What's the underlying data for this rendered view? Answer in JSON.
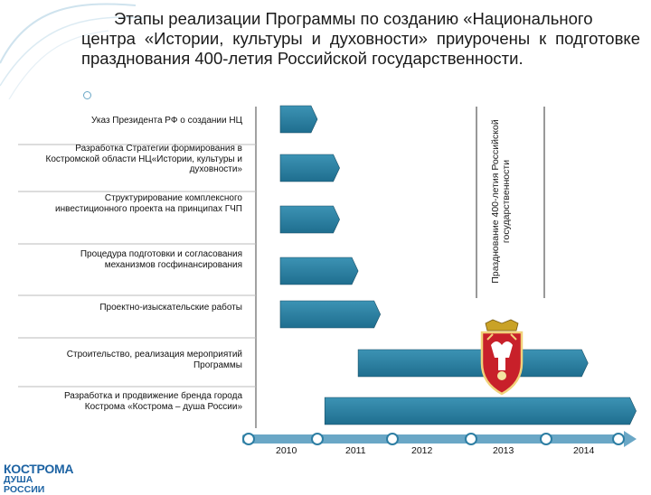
{
  "title": {
    "line1": "Этапы реализации Программы по созданию «Национального",
    "rest": "центра «Истории, культуры и духовности» приурочены к подготовке празднования 400-летия Российской государственности."
  },
  "vertical_note": "Празднование 400-летия Российской государственности",
  "logo": {
    "line1": "КОСТРОМА",
    "line2": "ДУША РОССИИ"
  },
  "colors": {
    "bar": "#1f6e8f",
    "bar_light": "#3c93b4",
    "axis": "#6aa7c6",
    "bracket": "#333333"
  },
  "chart_data": {
    "type": "gantt",
    "x_axis": {
      "ticks": [
        "2010",
        "2011",
        "2012",
        "2013",
        "2014"
      ]
    },
    "tasks": [
      {
        "label": "Указ Президента РФ о создании НЦ",
        "start": 2010.0,
        "end": 2010.5
      },
      {
        "label": "Разработка Стратегии формирования в Костромской области НЦ«Истории, культуры и духовности»",
        "start": 2010.0,
        "end": 2010.8
      },
      {
        "label": "Структурирование комплексного инвестиционного проекта на принципах ГЧП",
        "start": 2010.0,
        "end": 2010.8
      },
      {
        "label": "Процедура подготовки и согласования механизмов госфинансирования",
        "start": 2010.0,
        "end": 2011.05
      },
      {
        "label": "Проектно-изыскательские работы",
        "start": 2010.0,
        "end": 2011.35
      },
      {
        "label": "Строительство, реализация мероприятий Программы",
        "start": 2011.05,
        "end": 2014.15
      },
      {
        "label": "Разработка и продвижение бренда города Кострома «Кострома – душа России»",
        "start": 2010.6,
        "end": 2014.8
      }
    ]
  }
}
